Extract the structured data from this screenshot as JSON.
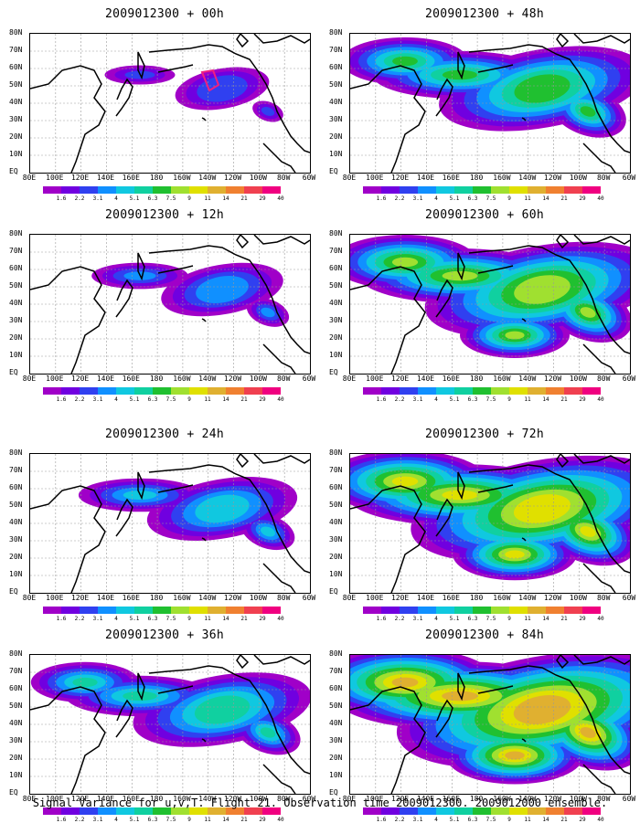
{
  "caption": "Signal Variance for u,v,T. Flight 21. Observation time 2009012300. 2009012000 ensemble.",
  "lat_labels": [
    "80N",
    "70N",
    "60N",
    "50N",
    "40N",
    "30N",
    "20N",
    "10N",
    "EQ"
  ],
  "lon_labels": [
    "80E",
    "100E",
    "120E",
    "140E",
    "160E",
    "180",
    "160W",
    "140W",
    "120W",
    "100W",
    "80W",
    "60W"
  ],
  "colorbar": {
    "levels": [
      "1.6",
      "2.2",
      "3.1",
      "4",
      "5.1",
      "6.3",
      "7.5",
      "9",
      "11",
      "14",
      "21",
      "29",
      "40"
    ],
    "colors": [
      "#a000c8",
      "#7000e0",
      "#3040f0",
      "#1090ff",
      "#10c8e0",
      "#10d0a0",
      "#20c030",
      "#a0e030",
      "#e0e000",
      "#e0b030",
      "#f08030",
      "#f04050",
      "#f00080"
    ]
  },
  "panels": [
    {
      "title": "2009012300 + 00h",
      "level": 0
    },
    {
      "title": "2009012300 + 12h",
      "level": 1
    },
    {
      "title": "2009012300 + 24h",
      "level": 2
    },
    {
      "title": "2009012300 + 36h",
      "level": 3
    },
    {
      "title": "2009012300 + 48h",
      "level": 4
    },
    {
      "title": "2009012300 + 60h",
      "level": 5
    },
    {
      "title": "2009012300 + 72h",
      "level": 6
    },
    {
      "title": "2009012300 + 84h",
      "level": 7
    }
  ]
}
